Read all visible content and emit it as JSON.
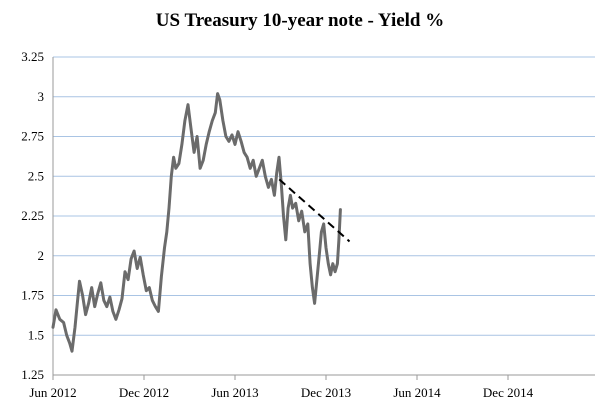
{
  "chart_data": {
    "type": "line",
    "title": "US Treasury 10-year note - Yield %",
    "xlabel": "",
    "ylabel": "",
    "ylim": [
      1.25,
      3.25
    ],
    "yticks": [
      "1.25",
      "1.5",
      "1.75",
      "2",
      "2.25",
      "2.5",
      "2.75",
      "3",
      "3.25"
    ],
    "xticks": [
      "Jun 2012",
      "Dec 2012",
      "Jun 2013",
      "Dec 2013",
      "Jun 2014",
      "Dec 2014"
    ],
    "grid": true,
    "legend": "none",
    "colors": {
      "series": "#6b6b6b",
      "trend": "#000000",
      "grid": "#a9c4e4",
      "axis": "#9a9a9a"
    },
    "series": [
      {
        "values": [
          [
            0,
            1.55
          ],
          [
            0.2,
            1.66
          ],
          [
            0.45,
            1.6
          ],
          [
            0.7,
            1.58
          ],
          [
            0.9,
            1.5
          ],
          [
            1.1,
            1.45
          ],
          [
            1.25,
            1.4
          ],
          [
            1.45,
            1.55
          ],
          [
            1.6,
            1.7
          ],
          [
            1.75,
            1.84
          ],
          [
            1.95,
            1.75
          ],
          [
            2.15,
            1.63
          ],
          [
            2.35,
            1.7
          ],
          [
            2.55,
            1.8
          ],
          [
            2.75,
            1.68
          ],
          [
            2.95,
            1.76
          ],
          [
            3.15,
            1.83
          ],
          [
            3.35,
            1.72
          ],
          [
            3.55,
            1.68
          ],
          [
            3.75,
            1.74
          ],
          [
            3.95,
            1.65
          ],
          [
            4.15,
            1.6
          ],
          [
            4.35,
            1.66
          ],
          [
            4.55,
            1.73
          ],
          [
            4.75,
            1.9
          ],
          [
            4.95,
            1.85
          ],
          [
            5.15,
            1.98
          ],
          [
            5.35,
            2.03
          ],
          [
            5.55,
            1.92
          ],
          [
            5.75,
            1.99
          ],
          [
            5.95,
            1.88
          ],
          [
            6.15,
            1.78
          ],
          [
            6.35,
            1.8
          ],
          [
            6.55,
            1.72
          ],
          [
            6.75,
            1.68
          ],
          [
            6.95,
            1.65
          ],
          [
            7.15,
            1.87
          ],
          [
            7.35,
            2.05
          ],
          [
            7.5,
            2.15
          ],
          [
            7.65,
            2.3
          ],
          [
            7.8,
            2.5
          ],
          [
            7.95,
            2.62
          ],
          [
            8.1,
            2.55
          ],
          [
            8.3,
            2.58
          ],
          [
            8.5,
            2.7
          ],
          [
            8.7,
            2.85
          ],
          [
            8.9,
            2.95
          ],
          [
            9.1,
            2.8
          ],
          [
            9.3,
            2.65
          ],
          [
            9.5,
            2.75
          ],
          [
            9.7,
            2.55
          ],
          [
            9.9,
            2.6
          ],
          [
            10.1,
            2.7
          ],
          [
            10.3,
            2.78
          ],
          [
            10.5,
            2.85
          ],
          [
            10.7,
            2.9
          ],
          [
            10.85,
            3.02
          ],
          [
            11.0,
            2.98
          ],
          [
            11.2,
            2.85
          ],
          [
            11.4,
            2.75
          ],
          [
            11.6,
            2.72
          ],
          [
            11.8,
            2.76
          ],
          [
            12.0,
            2.7
          ],
          [
            12.2,
            2.78
          ],
          [
            12.4,
            2.72
          ],
          [
            12.6,
            2.65
          ],
          [
            12.8,
            2.62
          ],
          [
            13.0,
            2.55
          ],
          [
            13.2,
            2.6
          ],
          [
            13.4,
            2.5
          ],
          [
            13.6,
            2.55
          ],
          [
            13.8,
            2.6
          ],
          [
            14.0,
            2.5
          ],
          [
            14.2,
            2.43
          ],
          [
            14.4,
            2.48
          ],
          [
            14.6,
            2.38
          ],
          [
            14.75,
            2.52
          ],
          [
            14.9,
            2.62
          ],
          [
            15.05,
            2.45
          ],
          [
            15.2,
            2.25
          ],
          [
            15.35,
            2.1
          ],
          [
            15.5,
            2.3
          ],
          [
            15.65,
            2.38
          ],
          [
            15.8,
            2.3
          ],
          [
            16.0,
            2.33
          ],
          [
            16.2,
            2.22
          ],
          [
            16.4,
            2.28
          ],
          [
            16.6,
            2.15
          ],
          [
            16.8,
            2.2
          ],
          [
            16.95,
            1.95
          ],
          [
            17.1,
            1.8
          ],
          [
            17.25,
            1.7
          ],
          [
            17.4,
            1.85
          ],
          [
            17.55,
            2.0
          ],
          [
            17.7,
            2.15
          ],
          [
            17.85,
            2.2
          ],
          [
            18.0,
            2.05
          ],
          [
            18.15,
            1.95
          ],
          [
            18.3,
            1.88
          ],
          [
            18.45,
            1.95
          ],
          [
            18.6,
            1.9
          ],
          [
            18.75,
            1.95
          ],
          [
            18.85,
            2.1
          ],
          [
            18.95,
            2.29
          ]
        ]
      }
    ],
    "trendline": {
      "x": [
        14.92,
        19.55
      ],
      "y": [
        2.48,
        2.09
      ]
    }
  }
}
